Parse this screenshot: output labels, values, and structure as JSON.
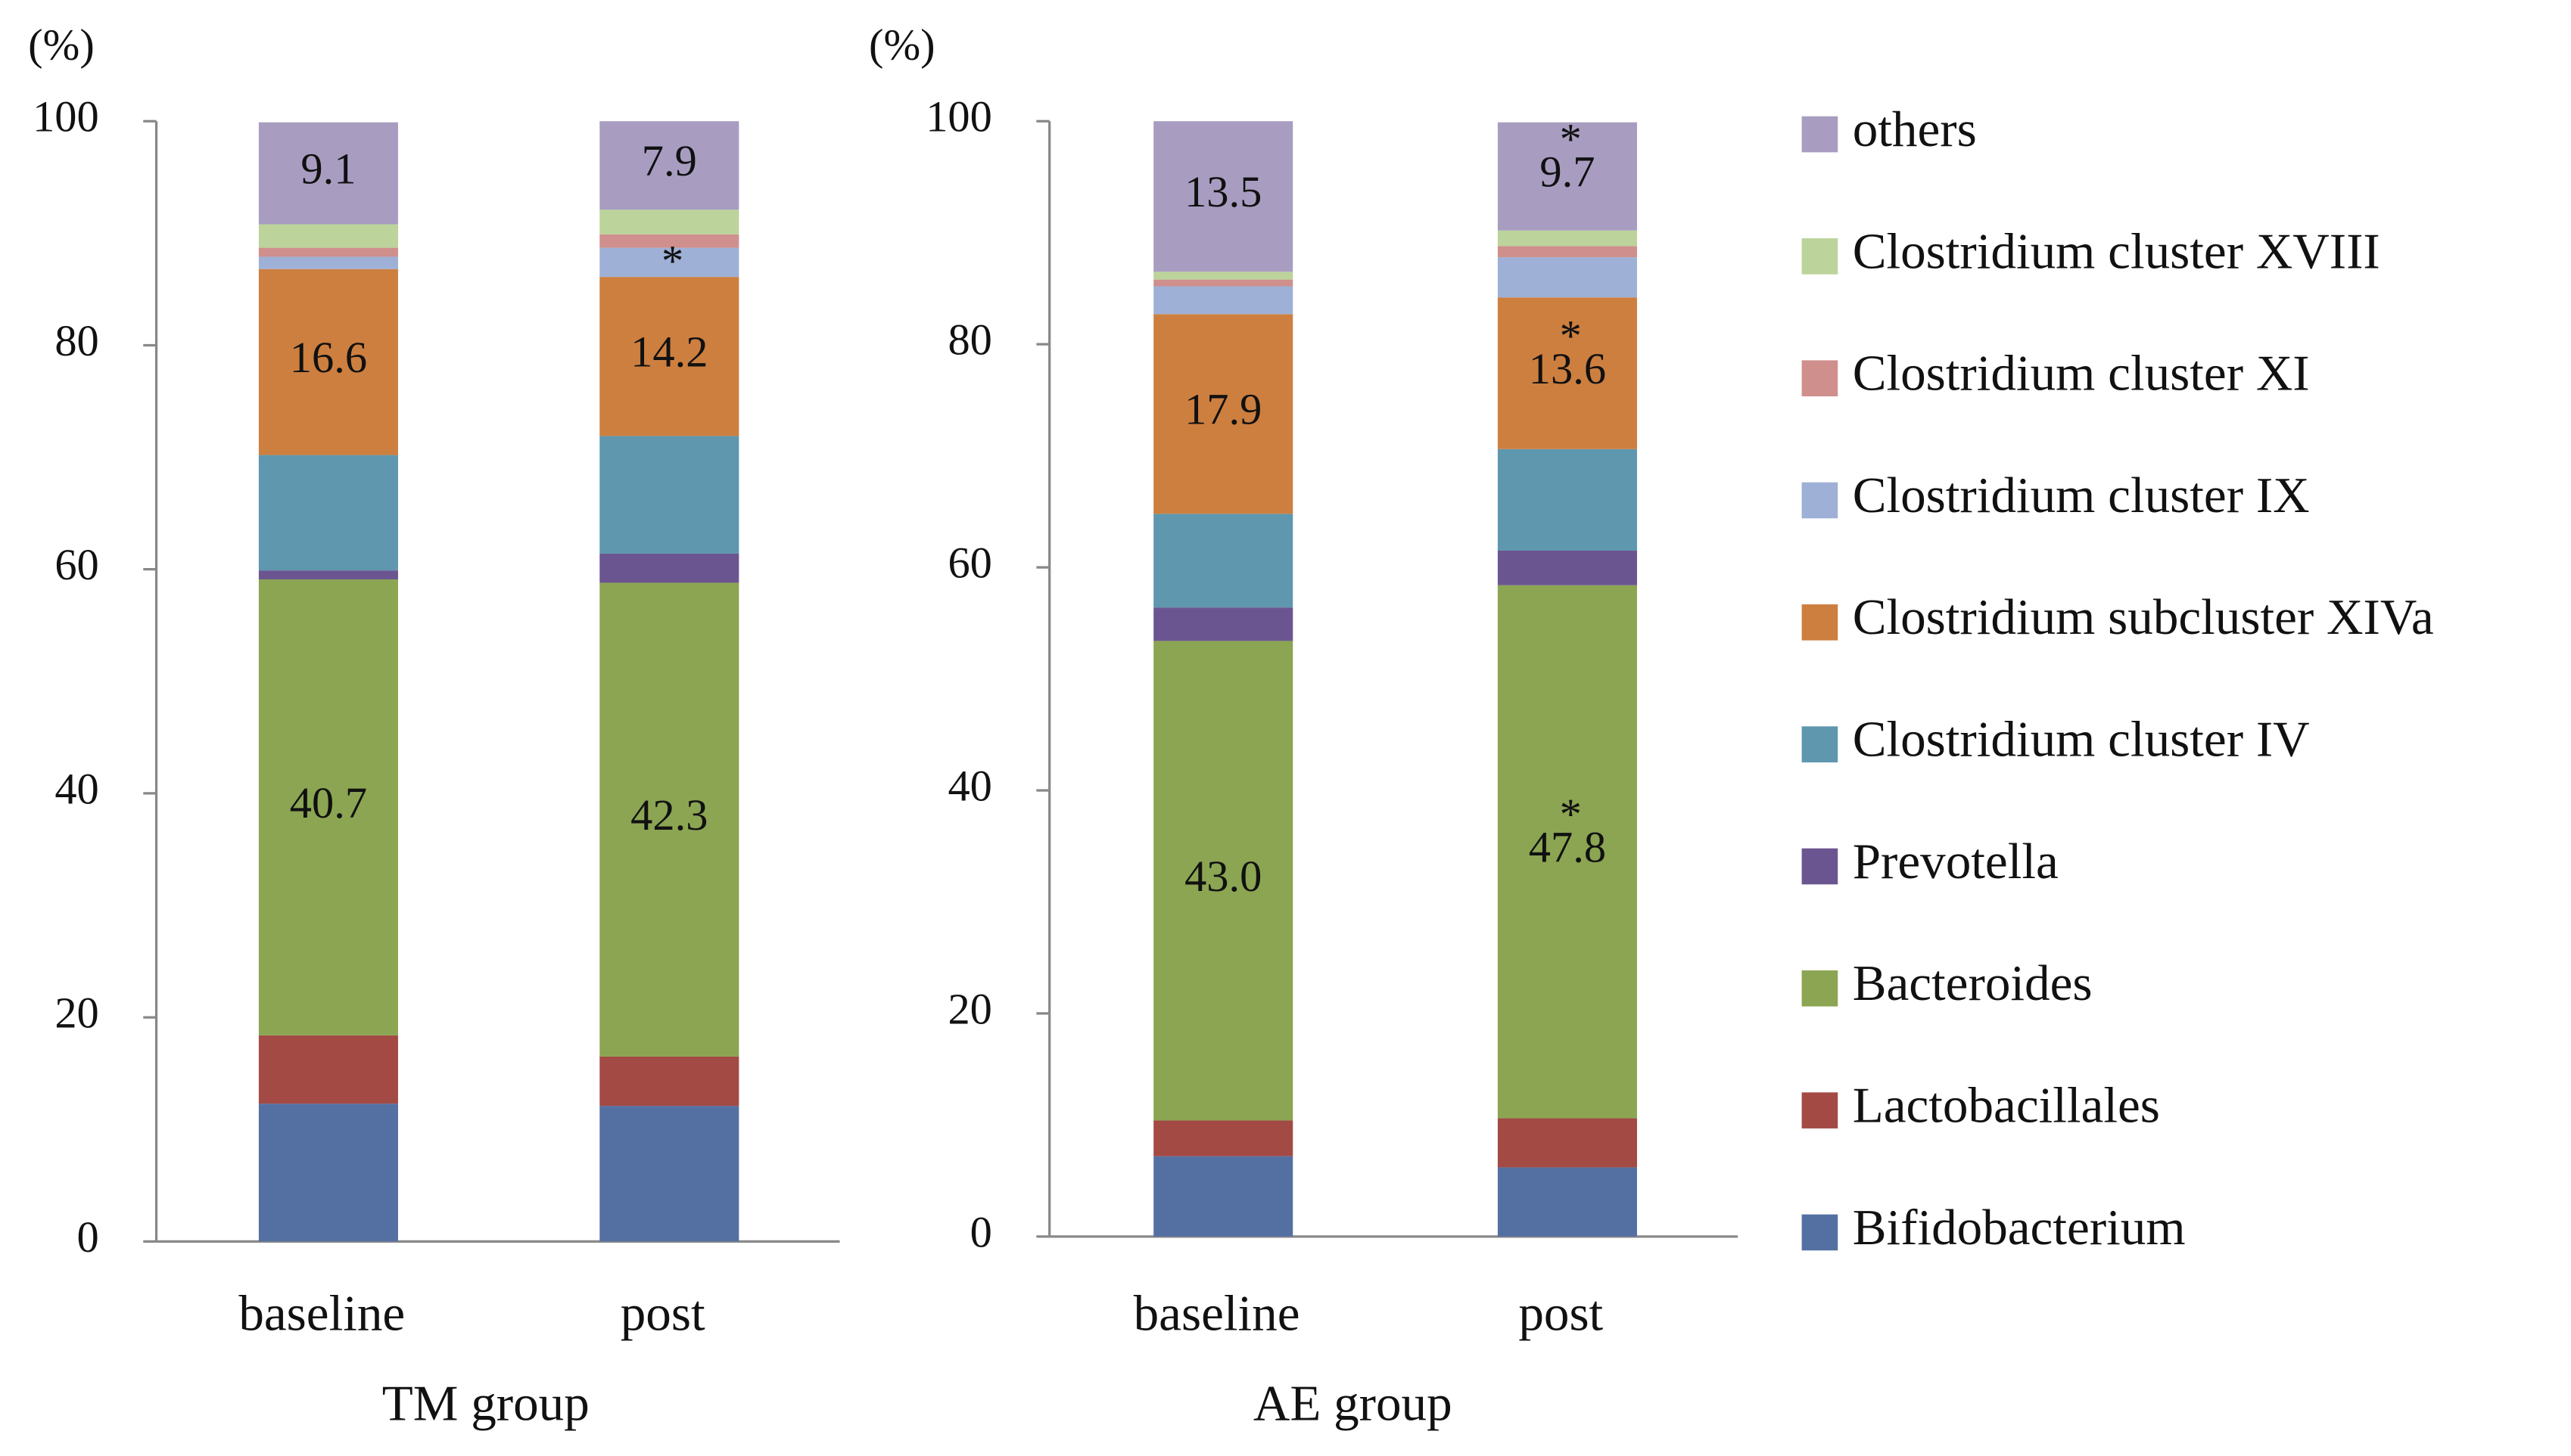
{
  "chart_data": [
    {
      "type": "bar",
      "stacked": true,
      "ylabel": "(%)",
      "xlabel": "TM group",
      "categories": [
        "baseline",
        "post"
      ],
      "ylim": [
        0,
        100
      ],
      "yticks": [
        0,
        20,
        40,
        60,
        80,
        100
      ],
      "series": [
        {
          "name": "Bifidobacterium",
          "color": "#5470a3",
          "values": [
            12.3,
            12.1
          ]
        },
        {
          "name": "Lactobacillales",
          "color": "#a34a45",
          "values": [
            6.1,
            4.4
          ]
        },
        {
          "name": "Bacteroides",
          "color": "#8ba552",
          "values": [
            40.7,
            42.3
          ],
          "value_labels": [
            "40.7",
            "42.3"
          ]
        },
        {
          "name": "Prevotella",
          "color": "#6b5591",
          "values": [
            0.8,
            2.6
          ]
        },
        {
          "name": "Clostridium cluster IV",
          "color": "#5e97ae",
          "values": [
            10.3,
            10.5
          ]
        },
        {
          "name": "Clostridium subcluster XIVa",
          "color": "#cd7f3f",
          "values": [
            16.6,
            14.2
          ],
          "value_labels": [
            "16.6",
            "14.2"
          ]
        },
        {
          "name": "Clostridium cluster IX",
          "color": "#9eb0d6",
          "values": [
            1.1,
            2.6
          ]
        },
        {
          "name": "Clostridium cluster XI",
          "color": "#cf8f8d",
          "values": [
            0.8,
            1.2
          ]
        },
        {
          "name": "Clostridium cluster XVIII",
          "color": "#bcd39b",
          "values": [
            2.1,
            2.2
          ]
        },
        {
          "name": "others",
          "color": "#a89dc1",
          "values": [
            9.1,
            7.9
          ],
          "value_labels": [
            "9.1",
            "7.9"
          ]
        }
      ],
      "annotations": [
        {
          "series": 6,
          "category": 1,
          "text": "*"
        }
      ]
    },
    {
      "type": "bar",
      "stacked": true,
      "ylabel": "(%)",
      "xlabel": "AE group",
      "categories": [
        "baseline",
        "post"
      ],
      "ylim": [
        0,
        100
      ],
      "yticks": [
        0,
        20,
        40,
        60,
        80,
        100
      ],
      "series": [
        {
          "values": [
            7.2,
            6.2
          ]
        },
        {
          "values": [
            3.2,
            4.4
          ]
        },
        {
          "values": [
            43.0,
            47.8
          ],
          "value_labels": [
            "43.0",
            "47.8"
          ]
        },
        {
          "values": [
            3.0,
            3.1
          ]
        },
        {
          "values": [
            8.4,
            9.1
          ]
        },
        {
          "values": [
            17.9,
            13.6
          ],
          "value_labels": [
            "17.9",
            "13.6"
          ]
        },
        {
          "values": [
            2.5,
            3.6
          ]
        },
        {
          "values": [
            0.6,
            1.0
          ]
        },
        {
          "values": [
            0.7,
            1.4
          ]
        },
        {
          "values": [
            13.5,
            9.7
          ],
          "value_labels": [
            "13.5",
            "9.7"
          ]
        }
      ],
      "annotations": [
        {
          "series": 9,
          "category": 1,
          "text": "*"
        },
        {
          "series": 5,
          "category": 1,
          "text": "*"
        },
        {
          "series": 2,
          "category": 1,
          "text": "*"
        }
      ]
    }
  ]
}
